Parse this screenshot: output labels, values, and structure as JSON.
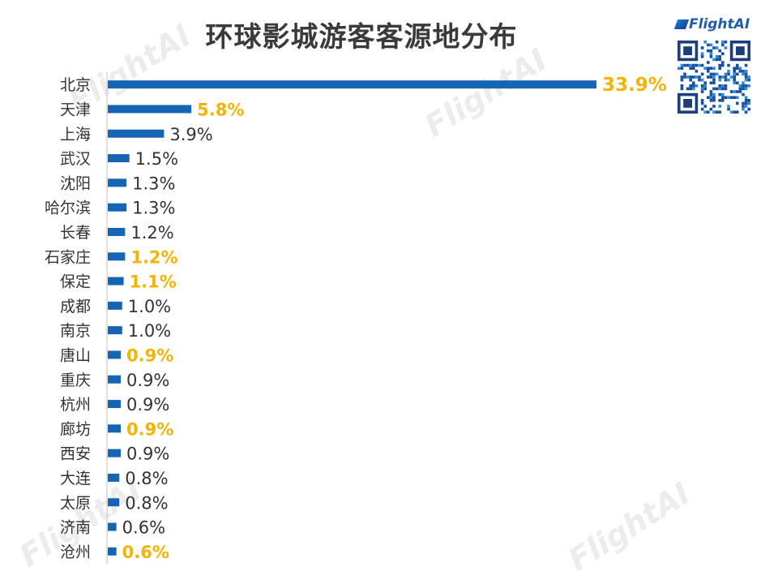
{
  "title": "环球影城游客客源地分布",
  "brand": "FlightAI",
  "colors": {
    "bar": "#1565b4",
    "label": "#333333",
    "highlight": "#f2b400",
    "axis": "#bfbfbf",
    "title": "#3a3a3a"
  },
  "chart_data": {
    "type": "bar",
    "orientation": "horizontal",
    "title": "环球影城游客客源地分布",
    "unit": "%",
    "categories": [
      "北京",
      "天津",
      "上海",
      "武汉",
      "沈阳",
      "哈尔滨",
      "长春",
      "石家庄",
      "保定",
      "成都",
      "南京",
      "唐山",
      "重庆",
      "杭州",
      "廊坊",
      "西安",
      "大连",
      "太原",
      "济南",
      "沧州"
    ],
    "values": [
      33.9,
      5.8,
      3.9,
      1.5,
      1.3,
      1.3,
      1.2,
      1.2,
      1.1,
      1.0,
      1.0,
      0.9,
      0.9,
      0.9,
      0.9,
      0.9,
      0.8,
      0.8,
      0.6,
      0.6
    ],
    "value_labels": [
      "33.9%",
      "5.8%",
      "3.9%",
      "1.5%",
      "1.3%",
      "1.3%",
      "1.2%",
      "1.2%",
      "1.1%",
      "1.0%",
      "1.0%",
      "0.9%",
      "0.9%",
      "0.9%",
      "0.9%",
      "0.9%",
      "0.8%",
      "0.8%",
      "0.6%",
      "0.6%"
    ],
    "highlighted": [
      true,
      true,
      false,
      false,
      false,
      false,
      false,
      true,
      true,
      false,
      false,
      true,
      false,
      false,
      true,
      false,
      false,
      false,
      false,
      true
    ],
    "xlim": [
      0,
      33.9
    ],
    "grid": false,
    "legend": "none"
  }
}
